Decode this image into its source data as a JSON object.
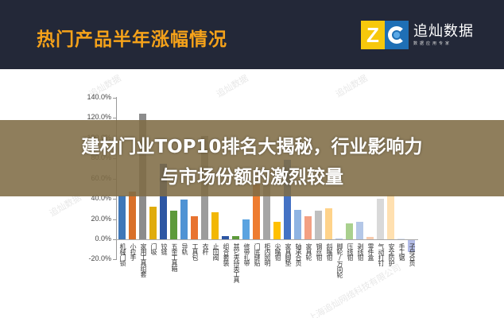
{
  "header": {
    "title": "热门产品半年涨幅情况",
    "logo": {
      "z": "Z",
      "name": "追灿数据",
      "subtitle": "数据应用专家"
    }
  },
  "overlay": {
    "line1": "建材门业TOP10排名大揭秘，行业影响力",
    "line2": "与市场份额的激烈较量"
  },
  "watermarks": [
    "追灿数据",
    "追灿数据",
    "追灿数据",
    "追灿数据",
    "上海追灿网络科技有限公司"
  ],
  "chart_data": {
    "type": "bar",
    "title": "热门产品半年涨幅情况",
    "xlabel": "",
    "ylabel": "",
    "ylim": [
      -20,
      140
    ],
    "yticks": [
      "140.0%",
      "120.0%",
      "100.0%",
      "80.0%",
      "60.0%",
      "40.0%",
      "20.0%",
      "0.0%",
      "-20.0%"
    ],
    "grid": false,
    "legend": null,
    "categories": [
      "机械门锁",
      "小拉手",
      "家用工具组套",
      "门吸",
      "铰链",
      "五金工具箱",
      "导轨",
      "工具包",
      "衣杆",
      "止回阀",
      "组合套装",
      "其它夹持类工具",
      "修带扎带",
      "门底缝贴",
      "柜内照明",
      "尖嘴钳",
      "家具脚垫",
      "轴承合页",
      "家具轮",
      "钢丝钳",
      "斜嘴钳",
      "脚轮/万向轮",
      "压线钳",
      "剥线钳",
      "零件盒",
      "气动打钉",
      "安全防护",
      "手工锯",
      "子母合页"
    ],
    "values": [
      43,
      47,
      124,
      32,
      75,
      28,
      39,
      23,
      102,
      27,
      3,
      3,
      20,
      54,
      54,
      17,
      79,
      29,
      23,
      28,
      31,
      0.5,
      16,
      17,
      2,
      40,
      44,
      0,
      -12
    ],
    "colors": [
      "#3f77b8",
      "#d9702a",
      "#8c8c8c",
      "#e0ac0c",
      "#2d56a3",
      "#5d9a3a",
      "#4f93d4",
      "#e87330",
      "#9c9c9c",
      "#f2b705",
      "#2d56a3",
      "#5d9a3a",
      "#5ba3e0",
      "#ee7c30",
      "#a5a5a5",
      "#ffc000",
      "#4472c4",
      "#8fb4e3",
      "#f3a083",
      "#bfbfbf",
      "#ffd38a",
      "#b4c7e7",
      "#a9d08e",
      "#b4c7e7",
      "#f8cbad",
      "#d9d9d9",
      "#ffe0b0",
      "#dde6f5",
      "#b4bde8"
    ]
  }
}
